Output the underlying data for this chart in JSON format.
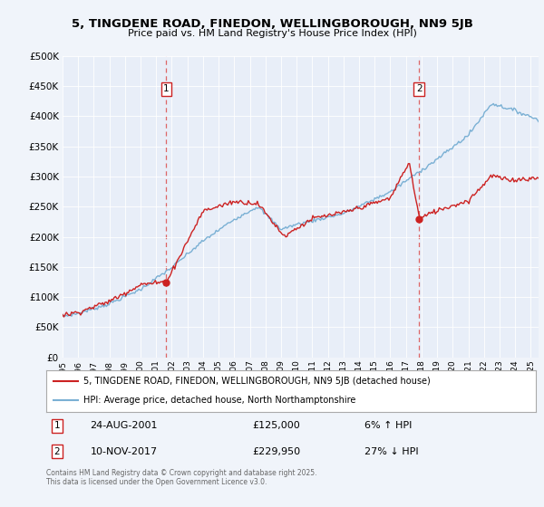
{
  "title1": "5, TINGDENE ROAD, FINEDON, WELLINGBOROUGH, NN9 5JB",
  "title2": "Price paid vs. HM Land Registry's House Price Index (HPI)",
  "bg_color": "#f0f4fa",
  "plot_bg": "#e8eef8",
  "legend_line1": "5, TINGDENE ROAD, FINEDON, WELLINGBOROUGH, NN9 5JB (detached house)",
  "legend_line2": "HPI: Average price, detached house, North Northamptonshire",
  "ann1_date": "24-AUG-2001",
  "ann1_price": "£125,000",
  "ann1_pct": "6% ↑ HPI",
  "ann2_date": "10-NOV-2017",
  "ann2_price": "£229,950",
  "ann2_pct": "27% ↓ HPI",
  "footer": "Contains HM Land Registry data © Crown copyright and database right 2025.\nThis data is licensed under the Open Government Licence v3.0.",
  "ylim": [
    0,
    500000
  ],
  "yticks": [
    0,
    50000,
    100000,
    150000,
    200000,
    250000,
    300000,
    350000,
    400000,
    450000,
    500000
  ],
  "hpi_color": "#7ab0d4",
  "price_color": "#cc2222",
  "vline_color": "#dd6666",
  "marker1_x": 2001.65,
  "marker2_x": 2017.85,
  "marker1_y": 125000,
  "marker2_y": 229950,
  "xmin": 1995,
  "xmax": 2025.5
}
